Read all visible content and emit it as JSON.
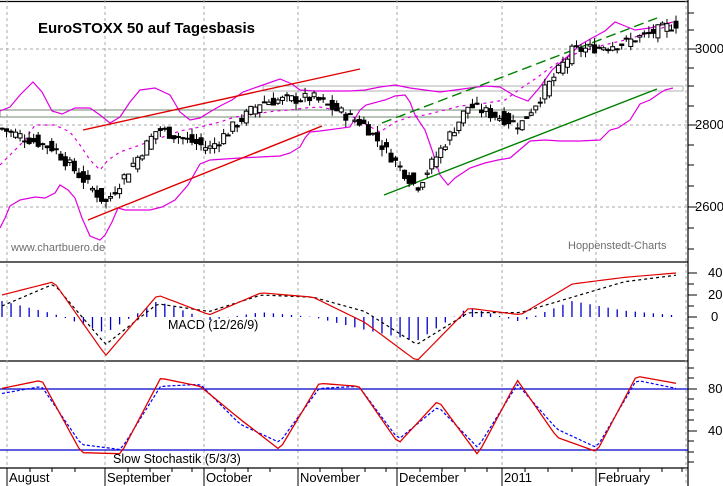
{
  "title": "EuroSTOXX 50 auf Tagesbasis",
  "watermark_left": "www.chartbuero.de",
  "watermark_right": "Hoppenstedt-Charts",
  "colors": {
    "upper_band": "#e000e0",
    "middle_band": "#e000e0",
    "red_channel": "#e00000",
    "green_channel": "#008000",
    "macd_line": "#e00000",
    "signal_line": "#000000",
    "histogram": "#0000cc",
    "stoch_k": "#e00000",
    "stoch_d": "#0000ff",
    "stoch_levels": "#0000cc",
    "grid": "#a0a0a0",
    "support_box": "#707070"
  },
  "chart_data": [
    {
      "type": "candlestick",
      "title": "EuroSTOXX 50 auf Tagesbasis",
      "xlabel": "",
      "ylabel": "",
      "ylim": [
        2470,
        3110
      ],
      "y_ticks": [
        2600,
        2800,
        3000
      ],
      "x_tick_labels": [
        "August",
        "September",
        "October",
        "November",
        "December",
        "2011",
        "February"
      ],
      "grid": true,
      "overlays": [
        "Bollinger Bands (upper/middle/lower)",
        "red uptrend channel (Aug-Nov)",
        "green uptrend channel (Dec-Feb)",
        "horizontal support zones ~2810-2830 and ~2885-2900"
      ],
      "close_approx": {
        "x": [
          "Aug-01",
          "Aug-15",
          "Aug-31",
          "Sep-15",
          "Sep-30",
          "Oct-15",
          "Oct-29",
          "Nov-15",
          "Nov-30",
          "Dec-15",
          "Dec-31",
          "Jan-15",
          "Jan-31",
          "Feb-15"
        ],
        "values": [
          2790,
          2740,
          2600,
          2790,
          2740,
          2860,
          2870,
          2800,
          2640,
          2850,
          2800,
          2990,
          3010,
          3060
        ]
      }
    },
    {
      "type": "line",
      "title": "MACD (12/26/9)",
      "ylim": [
        -60,
        50
      ],
      "y_ticks": [
        0,
        20,
        40
      ],
      "series": [
        {
          "name": "MACD",
          "x": [
            "Aug-01",
            "Aug-15",
            "Aug-31",
            "Sep-15",
            "Sep-30",
            "Oct-15",
            "Oct-29",
            "Nov-15",
            "Nov-30",
            "Dec-15",
            "Dec-31",
            "Jan-15",
            "Jan-31",
            "Feb-15"
          ],
          "values": [
            20,
            32,
            -35,
            20,
            2,
            22,
            18,
            -5,
            -40,
            8,
            2,
            30,
            36,
            40
          ]
        },
        {
          "name": "Signal",
          "values": [
            10,
            30,
            -25,
            12,
            5,
            20,
            18,
            5,
            -25,
            4,
            4,
            18,
            32,
            38
          ]
        },
        {
          "name": "Histogram",
          "values": [
            10,
            2,
            -10,
            10,
            -2,
            3,
            0,
            -8,
            -15,
            6,
            -3,
            10,
            4,
            1
          ]
        }
      ]
    },
    {
      "type": "line",
      "title": "Slow Stochastik (5/3/3)",
      "ylim": [
        0,
        105
      ],
      "y_ticks": [
        40,
        80
      ],
      "levels": [
        20,
        80
      ],
      "series": [
        {
          "name": "%K",
          "x": [
            "Aug-01",
            "Aug-10",
            "Aug-20",
            "Aug-31",
            "Sep-10",
            "Sep-25",
            "Oct-05",
            "Oct-20",
            "Nov-01",
            "Nov-12",
            "Nov-25",
            "Dec-05",
            "Dec-15",
            "Dec-31",
            "Jan-10",
            "Jan-20",
            "Feb-01",
            "Feb-15"
          ],
          "values": [
            80,
            88,
            17,
            16,
            90,
            82,
            50,
            20,
            85,
            82,
            26,
            68,
            15,
            88,
            32,
            18,
            92,
            85
          ]
        },
        {
          "name": "%D",
          "values": [
            75,
            82,
            25,
            20,
            82,
            84,
            45,
            27,
            80,
            82,
            30,
            62,
            22,
            84,
            40,
            22,
            88,
            80
          ]
        }
      ]
    }
  ],
  "panels": {
    "macd_label": "MACD (12/26/9)",
    "stoch_label": "Slow Stochastik (5/3/3)"
  },
  "price_axis": [
    "3000",
    "2800",
    "2600"
  ],
  "macd_axis": [
    "40",
    "20",
    "0"
  ],
  "stoch_axis": [
    "80",
    "40"
  ],
  "months": [
    "August",
    "September",
    "October",
    "November",
    "December",
    "2011",
    "February"
  ]
}
